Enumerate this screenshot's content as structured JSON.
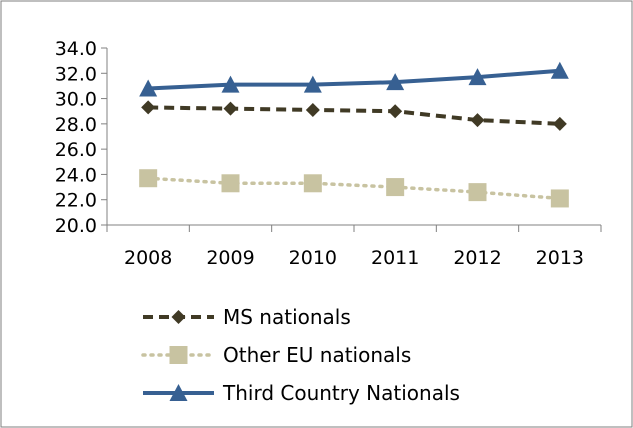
{
  "chart_data": {
    "type": "line",
    "categories": [
      "2008",
      "2009",
      "2010",
      "2011",
      "2012",
      "2013"
    ],
    "ylim": [
      20.0,
      34.0
    ],
    "y_ticks": [
      "20.0",
      "22.0",
      "24.0",
      "26.0",
      "28.0",
      "30.0",
      "32.0",
      "34.0"
    ],
    "grid": false,
    "legend_position": "bottom",
    "series": [
      {
        "name": "MS nationals",
        "values": [
          29.3,
          29.2,
          29.1,
          29.0,
          28.3,
          28.0
        ],
        "color": "#403a25",
        "marker": "diamond",
        "line_style": "dashed"
      },
      {
        "name": "Other EU nationals",
        "values": [
          23.7,
          23.3,
          23.3,
          23.0,
          22.6,
          22.1
        ],
        "color": "#c8c3a1",
        "marker": "square",
        "line_style": "dotted"
      },
      {
        "name": "Third Country Nationals",
        "values": [
          30.8,
          31.1,
          31.1,
          31.3,
          31.7,
          32.2
        ],
        "color": "#376092",
        "marker": "triangle",
        "line_style": "solid"
      }
    ]
  }
}
